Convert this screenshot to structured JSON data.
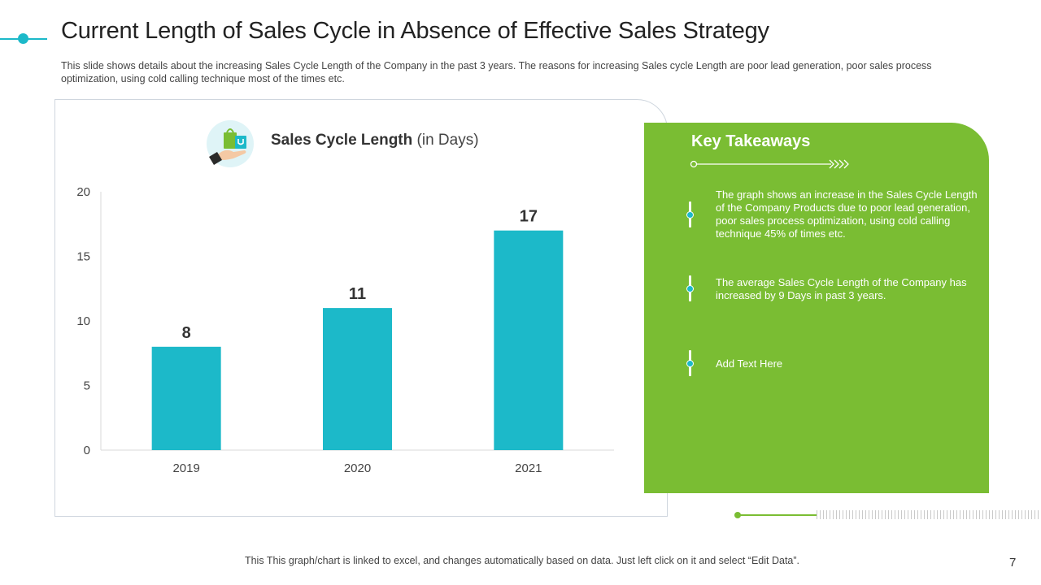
{
  "slide": {
    "title": "Current Length of Sales Cycle in Absence of Effective Sales Strategy",
    "subtitle": "This slide shows details about the increasing Sales Cycle Length of the Company in the past 3 years.  The reasons for increasing Sales cycle Length are poor lead generation, poor sales process optimization, using cold calling technique  most of the times etc.",
    "footer": "This This graph/chart is linked to excel,  and changes automatically based on data. Just left click on it and select “Edit Data”.",
    "page_number": "7",
    "icon": "shopping-bag-hand-icon",
    "accent_color": "#1cb9c9",
    "panel_color": "#7abd33"
  },
  "chart_data": {
    "type": "bar",
    "title": "Sales Cycle Length",
    "title_unit": "(in Days)",
    "categories": [
      "2019",
      "2020",
      "2021"
    ],
    "values": [
      8,
      11,
      17
    ],
    "ylim": [
      0,
      20
    ],
    "yticks": [
      0,
      5,
      10,
      15,
      20
    ],
    "xlabel": "",
    "ylabel": "",
    "bar_color": "#1cb9c9",
    "data_labels": true,
    "grid": false
  },
  "takeaways": {
    "title": "Key Takeaways",
    "items": [
      "The graph shows an increase  in the Sales Cycle Length of the Company Products due to poor lead generation, poor sales process optimization, using cold calling technique  45% of times etc.",
      "The average Sales Cycle Length of the Company has increased  by 9 Days in past 3 years.",
      "Add Text Here"
    ]
  }
}
